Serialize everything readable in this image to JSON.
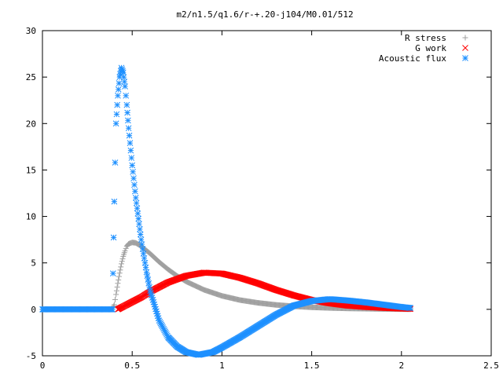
{
  "chart_data": {
    "type": "scatter",
    "title": "m2/n1.5/q1.6/r-+.20-j104/M0.01/512",
    "xlabel": "",
    "ylabel": "",
    "xlim": [
      0,
      2.5
    ],
    "ylim": [
      -5,
      30
    ],
    "x_ticks": [
      "0",
      "0.5",
      "1",
      "1.5",
      "2",
      "2.5"
    ],
    "y_ticks": [
      "-5",
      "0",
      "5",
      "10",
      "15",
      "20",
      "25",
      "30"
    ],
    "grid": false,
    "legend_position": "top-right",
    "series": [
      {
        "name": "R stress",
        "marker": "plus",
        "color": "#a0a0a0",
        "points": [
          [
            0.0,
            0
          ],
          [
            0.2,
            0
          ],
          [
            0.39,
            0
          ],
          [
            0.4,
            0.5
          ],
          [
            0.41,
            1.6
          ],
          [
            0.42,
            2.8
          ],
          [
            0.43,
            3.9
          ],
          [
            0.44,
            4.9
          ],
          [
            0.45,
            5.7
          ],
          [
            0.46,
            6.3
          ],
          [
            0.47,
            6.8
          ],
          [
            0.48,
            7.05
          ],
          [
            0.5,
            7.2
          ],
          [
            0.52,
            7.15
          ],
          [
            0.55,
            6.8
          ],
          [
            0.6,
            6.0
          ],
          [
            0.65,
            5.1
          ],
          [
            0.7,
            4.3
          ],
          [
            0.75,
            3.6
          ],
          [
            0.8,
            3.0
          ],
          [
            0.9,
            2.1
          ],
          [
            1.0,
            1.45
          ],
          [
            1.1,
            1.0
          ],
          [
            1.2,
            0.7
          ],
          [
            1.3,
            0.48
          ],
          [
            1.4,
            0.33
          ],
          [
            1.5,
            0.22
          ],
          [
            1.6,
            0.15
          ],
          [
            1.7,
            0.1
          ],
          [
            1.8,
            0.07
          ],
          [
            1.9,
            0.04
          ],
          [
            2.0,
            0.02
          ],
          [
            2.05,
            0.01
          ]
        ]
      },
      {
        "name": "G work",
        "marker": "cross",
        "color": "#ff0000",
        "points": [
          [
            0.42,
            0
          ],
          [
            0.45,
            0.3
          ],
          [
            0.5,
            0.8
          ],
          [
            0.55,
            1.3
          ],
          [
            0.6,
            1.9
          ],
          [
            0.7,
            2.9
          ],
          [
            0.8,
            3.6
          ],
          [
            0.9,
            3.95
          ],
          [
            1.0,
            3.85
          ],
          [
            1.1,
            3.4
          ],
          [
            1.2,
            2.8
          ],
          [
            1.3,
            2.1
          ],
          [
            1.4,
            1.5
          ],
          [
            1.5,
            1.0
          ],
          [
            1.6,
            0.65
          ],
          [
            1.7,
            0.4
          ],
          [
            1.8,
            0.25
          ],
          [
            1.9,
            0.15
          ],
          [
            2.0,
            0.08
          ],
          [
            2.05,
            0.05
          ]
        ]
      },
      {
        "name": "Acoustic flux",
        "marker": "star",
        "color": "#1e90ff",
        "points": [
          [
            0.0,
            0
          ],
          [
            0.2,
            0
          ],
          [
            0.39,
            0
          ],
          [
            0.4,
            11.6
          ],
          [
            0.41,
            20.0
          ],
          [
            0.42,
            23.0
          ],
          [
            0.43,
            25.0
          ],
          [
            0.44,
            26.0
          ],
          [
            0.45,
            25.5
          ],
          [
            0.46,
            24.0
          ],
          [
            0.47,
            22.0
          ],
          [
            0.48,
            19.5
          ],
          [
            0.5,
            15.5
          ],
          [
            0.52,
            12.0
          ],
          [
            0.55,
            7.5
          ],
          [
            0.58,
            4.0
          ],
          [
            0.6,
            2.0
          ],
          [
            0.65,
            -1.2
          ],
          [
            0.7,
            -3.0
          ],
          [
            0.75,
            -4.0
          ],
          [
            0.8,
            -4.6
          ],
          [
            0.87,
            -4.9
          ],
          [
            0.95,
            -4.6
          ],
          [
            1.0,
            -4.1
          ],
          [
            1.1,
            -3.0
          ],
          [
            1.2,
            -1.8
          ],
          [
            1.3,
            -0.6
          ],
          [
            1.4,
            0.4
          ],
          [
            1.5,
            0.9
          ],
          [
            1.6,
            1.1
          ],
          [
            1.7,
            0.95
          ],
          [
            1.8,
            0.75
          ],
          [
            1.9,
            0.5
          ],
          [
            2.0,
            0.25
          ],
          [
            2.05,
            0.15
          ]
        ]
      }
    ]
  }
}
